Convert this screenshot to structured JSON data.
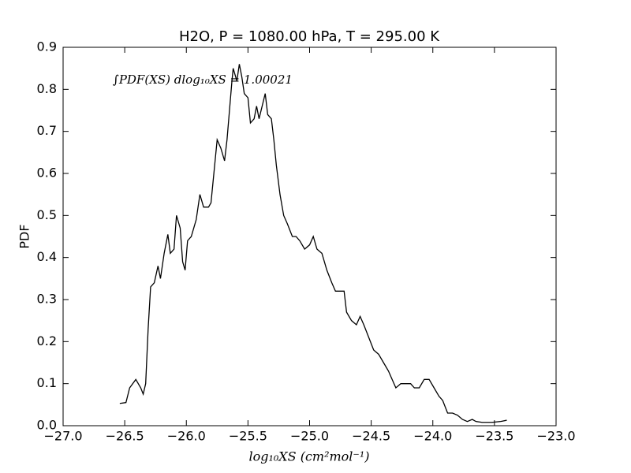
{
  "chart_data": {
    "type": "line",
    "title": "H2O, P = 1080.00 hPa, T = 295.00 K",
    "xlabel": "log₁₀XS (cm²mol⁻¹)",
    "ylabel": "PDF",
    "annotation": "∫PDF(XS) dlog₁₀XS = 1.00021",
    "color": "#000000",
    "x": [
      -26.54,
      -26.49,
      -26.46,
      -26.41,
      -26.37,
      -26.35,
      -26.33,
      -26.31,
      -26.29,
      -26.26,
      -26.23,
      -26.21,
      -26.18,
      -26.15,
      -26.13,
      -26.1,
      -26.08,
      -26.05,
      -26.03,
      -26.01,
      -25.99,
      -25.96,
      -25.92,
      -25.89,
      -25.86,
      -25.82,
      -25.8,
      -25.77,
      -25.75,
      -25.72,
      -25.69,
      -25.67,
      -25.65,
      -25.63,
      -25.62,
      -25.59,
      -25.57,
      -25.55,
      -25.53,
      -25.5,
      -25.48,
      -25.45,
      -25.43,
      -25.41,
      -25.36,
      -25.34,
      -25.31,
      -25.29,
      -25.27,
      -25.24,
      -25.21,
      -25.18,
      -25.14,
      -25.11,
      -25.08,
      -25.04,
      -25.0,
      -24.97,
      -24.94,
      -24.9,
      -24.86,
      -24.82,
      -24.79,
      -24.76,
      -24.72,
      -24.7,
      -24.66,
      -24.62,
      -24.59,
      -24.56,
      -24.52,
      -24.48,
      -24.44,
      -24.4,
      -24.36,
      -24.33,
      -24.3,
      -24.26,
      -24.22,
      -24.18,
      -24.15,
      -24.11,
      -24.07,
      -24.03,
      -23.99,
      -23.95,
      -23.92,
      -23.88,
      -23.84,
      -23.8,
      -23.76,
      -23.72,
      -23.68,
      -23.65,
      -23.6,
      -23.52,
      -23.45,
      -23.4
    ],
    "values": [
      0.053,
      0.055,
      0.09,
      0.11,
      0.09,
      0.075,
      0.1,
      0.23,
      0.33,
      0.34,
      0.38,
      0.35,
      0.41,
      0.455,
      0.41,
      0.42,
      0.5,
      0.47,
      0.39,
      0.37,
      0.44,
      0.45,
      0.49,
      0.55,
      0.52,
      0.52,
      0.53,
      0.62,
      0.68,
      0.66,
      0.63,
      0.68,
      0.75,
      0.82,
      0.85,
      0.82,
      0.86,
      0.83,
      0.79,
      0.78,
      0.72,
      0.73,
      0.76,
      0.73,
      0.79,
      0.74,
      0.73,
      0.68,
      0.62,
      0.55,
      0.5,
      0.48,
      0.45,
      0.45,
      0.44,
      0.42,
      0.43,
      0.45,
      0.42,
      0.41,
      0.37,
      0.34,
      0.32,
      0.32,
      0.32,
      0.27,
      0.25,
      0.24,
      0.26,
      0.24,
      0.21,
      0.18,
      0.17,
      0.15,
      0.13,
      0.11,
      0.09,
      0.1,
      0.1,
      0.1,
      0.09,
      0.09,
      0.11,
      0.11,
      0.09,
      0.07,
      0.06,
      0.03,
      0.03,
      0.025,
      0.015,
      0.01,
      0.015,
      0.01,
      0.008,
      0.008,
      0.01,
      0.013
    ],
    "xlim": [
      -27,
      -23
    ],
    "ylim": [
      0,
      0.9
    ],
    "xticks": [
      {
        "value": -27,
        "label": "−27.0"
      },
      {
        "value": -26.5,
        "label": "−26.5"
      },
      {
        "value": -26,
        "label": "−26.0"
      },
      {
        "value": -25.5,
        "label": "−25.5"
      },
      {
        "value": -25,
        "label": "−25.0"
      },
      {
        "value": -24.5,
        "label": "−24.5"
      },
      {
        "value": -24,
        "label": "−24.0"
      },
      {
        "value": -23.5,
        "label": "−23.5"
      },
      {
        "value": -23,
        "label": "−23.0"
      }
    ],
    "yticks": [
      {
        "value": 0,
        "label": "0.0"
      },
      0.1,
      0.2,
      0.3,
      0.4,
      0.5,
      0.6,
      0.7,
      0.8,
      0.9
    ],
    "grid": false
  }
}
